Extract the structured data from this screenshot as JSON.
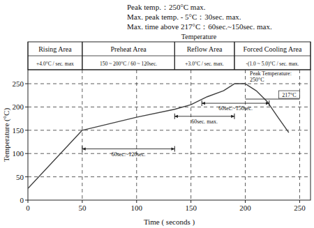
{
  "chart_data": {
    "type": "line",
    "header_lines": [
      "Peak temp.：250°C max.",
      "Max. peak temp. - 5°C：30sec. max.",
      "Max. time above 217°C：60sec.~150sec. max."
    ],
    "header_title": "Temperature",
    "areas": [
      {
        "name": "Rising Area",
        "rate": "+4.0°C / sec. max",
        "start": 0,
        "end": 50
      },
      {
        "name": "Preheat Area",
        "rate": "150 ~ 200°C / 60 ~ 120sec.",
        "start": 50,
        "end": 135
      },
      {
        "name": "Reflow Area",
        "rate": "+3.0°C / sec. max.",
        "start": 135,
        "end": 190
      },
      {
        "name": "Forced Cooling Area",
        "rate": "-(1.0 ~ 5.0)°C / sec. max.",
        "start": 190,
        "end": 260
      }
    ],
    "x_label": "Time ( seconds )",
    "y_label": "Temperature (°C)",
    "x": [
      0,
      50,
      100,
      135,
      150,
      165,
      180,
      190,
      200,
      210,
      220,
      230,
      240
    ],
    "values": [
      25,
      150,
      178,
      195,
      205,
      222,
      235,
      250,
      250,
      235,
      212,
      178,
      145
    ],
    "color": "#404040",
    "xlim": [
      0,
      260
    ],
    "ylim": [
      0,
      280
    ],
    "xticks": [
      0,
      50,
      100,
      150,
      200,
      250
    ],
    "yticks": [
      0,
      50,
      100,
      150,
      200,
      250
    ],
    "grid": true,
    "annotations": [
      {
        "label": "60sec.~120sec.",
        "x0": 50,
        "x1": 135,
        "y": 110
      },
      {
        "label": "60sec. max.",
        "x0": 135,
        "x1": 190,
        "y": 180
      },
      {
        "label": "60sec.~150sec.",
        "x0": 160,
        "x1": 222,
        "y": 208
      }
    ],
    "levels": [
      {
        "label": "217°C",
        "x0": 200,
        "x1": 250,
        "y": 217
      }
    ],
    "peak_label": [
      "Peak Temperature:",
      "250°C"
    ]
  }
}
